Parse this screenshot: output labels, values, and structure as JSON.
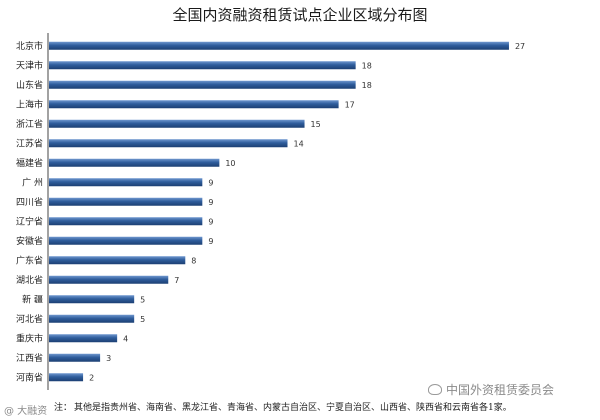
{
  "chart_data": {
    "type": "bar",
    "orientation": "horizontal",
    "title": "全国内资融资租赁试点企业区域分布图",
    "categories": [
      "北京市",
      "天津市",
      "山东省",
      "上海市",
      "浙江省",
      "江苏省",
      "福建省",
      "广 州",
      "四川省",
      "辽宁省",
      "安徽省",
      "广东省",
      "湖北省",
      "新 疆",
      "河北省",
      "重庆市",
      "江西省",
      "河南省"
    ],
    "values": [
      27,
      18,
      18,
      17,
      15,
      14,
      10,
      9,
      9,
      9,
      9,
      8,
      7,
      5,
      5,
      4,
      3,
      2
    ],
    "xlim": [
      0,
      28
    ],
    "grid": false,
    "legend": "none",
    "bar_color": "#2e5e9e"
  },
  "footnote": {
    "prefix": "注：",
    "text": "其他是指贵州省、海南省、黑龙江省、青海省、内蒙古自治区、宁夏自治区、山西省、陕西省和云南省各1家。"
  },
  "watermarks": {
    "brand": "中国外资租赁委员会",
    "source": "@ 大融资"
  }
}
